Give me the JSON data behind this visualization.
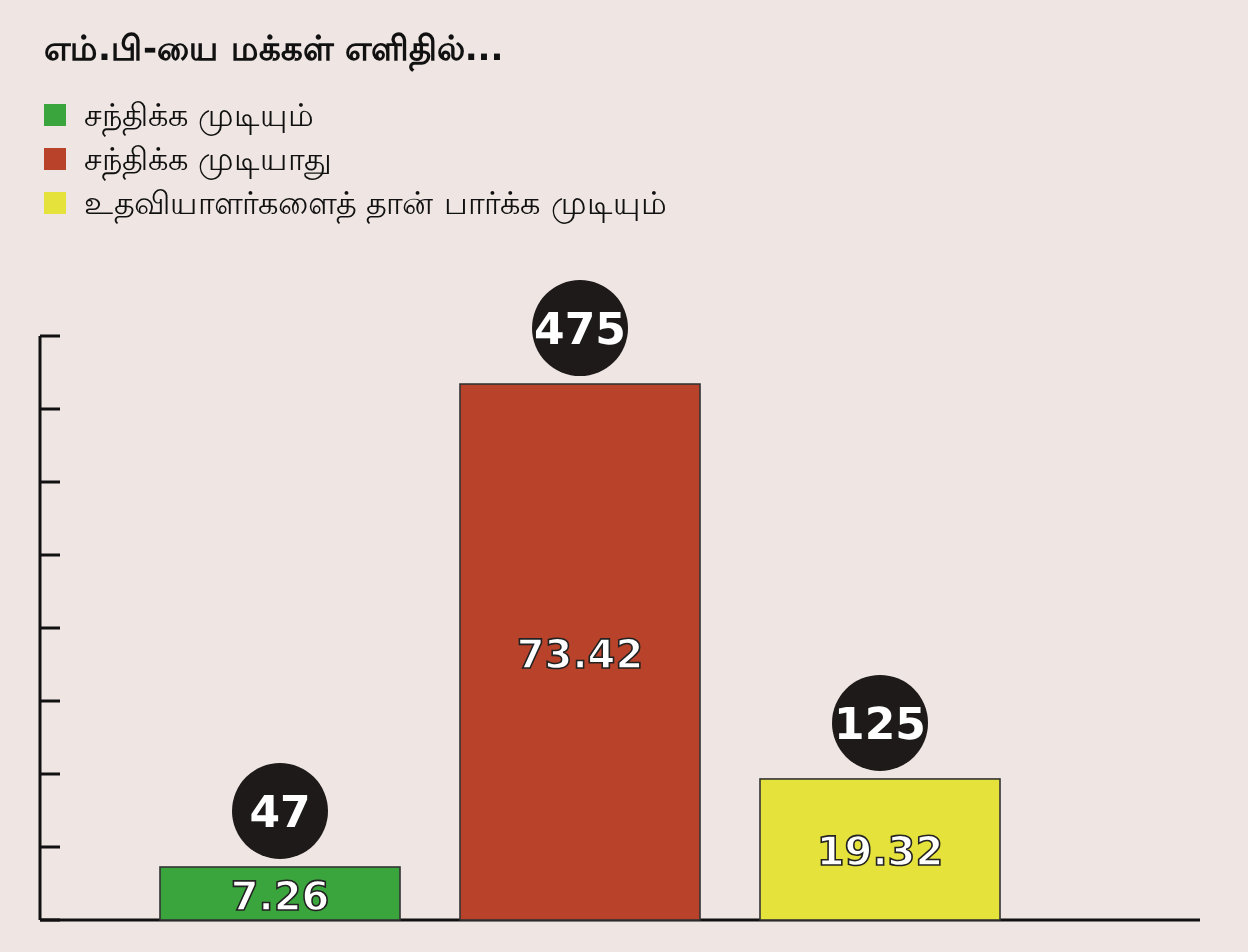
{
  "chart_data": {
    "type": "bar",
    "title": "எம்.பி-யை மக்கள் எளிதில்...",
    "categories": [
      null,
      null,
      null
    ],
    "series": [
      {
        "name": "சந்திக்க முடியும்",
        "color": "#3aa53c",
        "values": [
          7.26,
          null,
          null
        ]
      },
      {
        "name": "சந்திக்க முடியாது",
        "color": "#b8432a",
        "values": [
          null,
          73.42,
          null
        ]
      },
      {
        "name": "உதவியாளர்களைத் தான் பார்க்க முடியும்",
        "color": "#e6e23c",
        "values": [
          null,
          null,
          19.32
        ]
      }
    ],
    "stacked": true,
    "ylim": [
      0,
      80
    ],
    "yticks": [
      {
        "value": 0,
        "label": null
      },
      {
        "value": 10,
        "label": null
      },
      {
        "value": 20,
        "label": null
      },
      {
        "value": 30,
        "label": null
      },
      {
        "value": 40,
        "label": null
      },
      {
        "value": 50,
        "label": null
      },
      {
        "value": 60,
        "label": null
      },
      {
        "value": 70,
        "label": null
      },
      {
        "value": 80,
        "label": null
      }
    ],
    "tick_labels": false,
    "data_labels": true,
    "legend": "top left",
    "annotations": [
      "47",
      "475",
      "125"
    ]
  }
}
